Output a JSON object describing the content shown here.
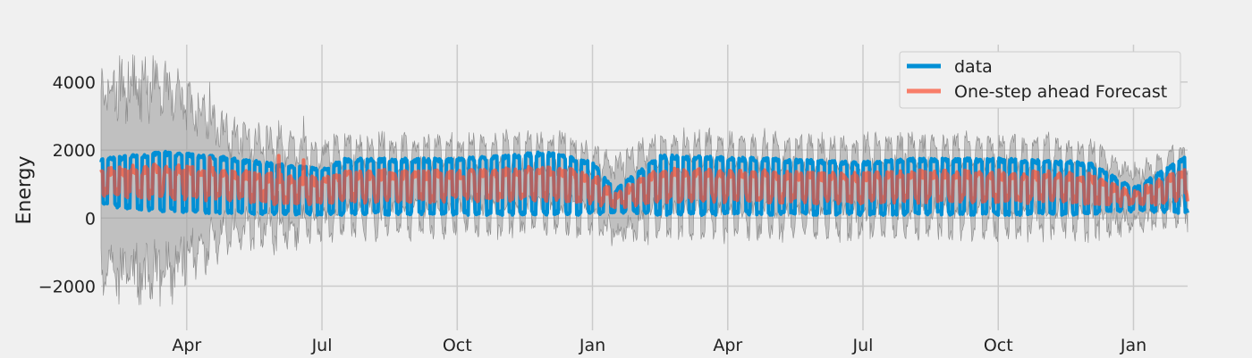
{
  "chart_data": {
    "type": "line",
    "title": "",
    "xlabel": "",
    "ylabel": "Energy",
    "ylim": [
      -3300,
      5100
    ],
    "xlim": [
      -1.9,
      22.2
    ],
    "grid": true,
    "legend_position": "top-right",
    "y_ticks": [
      -2000,
      0,
      2000,
      4000
    ],
    "y_tick_labels": [
      "−2000",
      "0",
      "2000",
      "4000"
    ],
    "x_ticks": [
      0,
      3,
      6,
      9,
      12,
      15,
      18,
      21
    ],
    "x_tick_labels": [
      "Apr",
      "Jul",
      "Oct",
      "Jan",
      "Apr",
      "Jul",
      "Oct",
      "Jan"
    ],
    "x_unit": "months since Apr (year 1)",
    "series": [
      {
        "name": "data",
        "color": "#008fd5",
        "period_weeks": 0.25,
        "envelope": {
          "x": [
            -1.9,
            -0.5,
            0.5,
            3.0,
            3.5,
            6.0,
            8.0,
            9.0,
            9.5,
            10.5,
            13.0,
            15.0,
            16.0,
            18.0,
            20.0,
            21.0,
            22.2
          ],
          "high": [
            1700,
            1900,
            1800,
            1400,
            1700,
            1700,
            1900,
            1600,
            800,
            1800,
            1700,
            1600,
            1700,
            1700,
            1600,
            850,
            1800
          ],
          "low": [
            400,
            250,
            200,
            150,
            150,
            150,
            150,
            150,
            200,
            150,
            150,
            150,
            150,
            150,
            150,
            250,
            200
          ]
        }
      },
      {
        "name": "One-step ahead Forecast",
        "color": "#fc4f30",
        "confidence_interval_color": "#a0a0a0",
        "confidence_halfwidth": {
          "x": [
            -1.9,
            -0.5,
            0.0,
            1.0,
            2.5,
            3.0,
            5.0,
            8.0,
            9.0,
            10.0,
            13.0,
            15.0,
            17.0,
            20.0,
            21.0,
            22.2
          ],
          "values": [
            2700,
            2800,
            2200,
            1400,
            1100,
            1000,
            950,
            950,
            900,
            1000,
            1000,
            1000,
            1000,
            950,
            700,
            750
          ]
        }
      }
    ]
  }
}
